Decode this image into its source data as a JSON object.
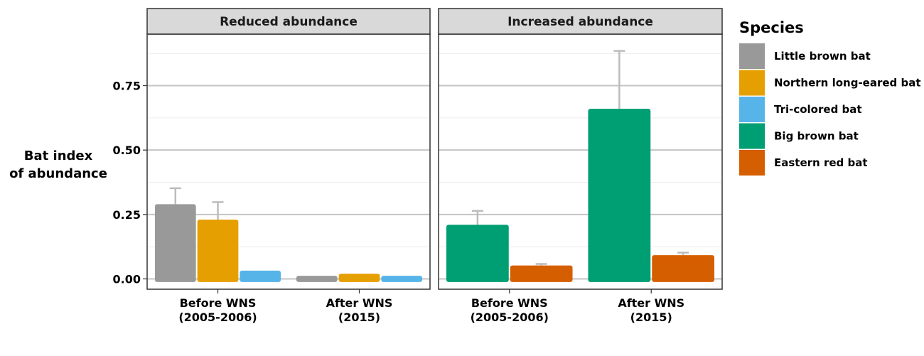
{
  "chart_data": {
    "type": "bar",
    "ylabel": [
      "Bat index",
      "of abundance"
    ],
    "ylim": [
      -0.04,
      0.95
    ],
    "yticks": [
      "0.00",
      "0.25",
      "0.50",
      "0.75"
    ],
    "ytick_values": [
      0,
      0.25,
      0.5,
      0.75
    ],
    "grid": true,
    "legend": {
      "title": "Species",
      "position": "right",
      "entries": [
        {
          "name": "Little brown bat",
          "color": "#999999"
        },
        {
          "name": "Northern long-eared bat",
          "color": "#E69F00"
        },
        {
          "name": "Tri-colored bat",
          "color": "#56B4E9"
        },
        {
          "name": "Big brown bat",
          "color": "#009E73"
        },
        {
          "name": "Eastern red bat",
          "color": "#D55E00"
        }
      ]
    },
    "panels": [
      {
        "title": "Reduced abundance",
        "categories": [
          [
            "Before WNS",
            "(2005-2006)"
          ],
          [
            "After WNS",
            "(2015)"
          ]
        ],
        "series": [
          {
            "name": "Little brown bat",
            "color": "#999999",
            "values": [
              0.29,
              0.012
            ],
            "errors": [
              0.352,
              null
            ]
          },
          {
            "name": "Northern long-eared bat",
            "color": "#E69F00",
            "values": [
              0.23,
              0.02
            ],
            "errors": [
              0.298,
              null
            ]
          },
          {
            "name": "Tri-colored bat",
            "color": "#56B4E9",
            "values": [
              0.032,
              0.012
            ],
            "errors": [
              null,
              null
            ]
          }
        ]
      },
      {
        "title": "Increased abundance",
        "categories": [
          [
            "Before WNS",
            "(2005-2006)"
          ],
          [
            "After WNS",
            "(2015)"
          ]
        ],
        "series": [
          {
            "name": "Big brown bat",
            "color": "#009E73",
            "values": [
              0.21,
              0.66
            ],
            "errors": [
              0.264,
              0.885
            ]
          },
          {
            "name": "Eastern red bat",
            "color": "#D55E00",
            "values": [
              0.052,
              0.092
            ],
            "errors": [
              0.058,
              0.102
            ]
          }
        ]
      }
    ]
  }
}
